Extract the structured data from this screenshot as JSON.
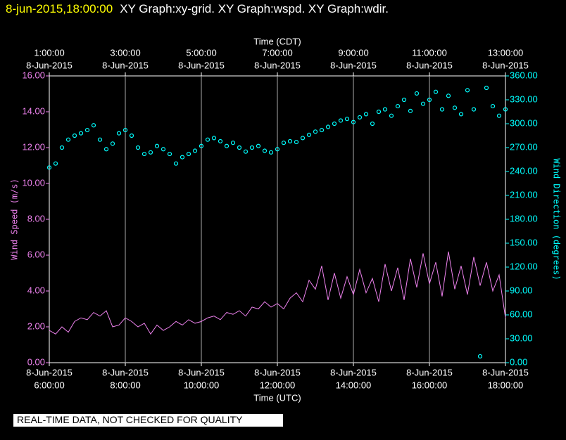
{
  "header": {
    "timestamp": "8-jun-2015,18:00:00",
    "graphs": "XY Graph:xy-grid.  XY Graph:wspd.  XY Graph:wdir."
  },
  "chart_data": {
    "type": "line-scatter",
    "xlabel": "Time (UTC)",
    "x2label": "Time (CDT)",
    "ylabel": "Wind Speed (m/s)",
    "y2label": "Wind Direction (degrees)",
    "note": "REAL-TIME DATA, NOT CHECKED FOR QUALITY",
    "xlim": [
      "2015-06-08 06:00",
      "2015-06-08 18:00"
    ],
    "xticks": [
      {
        "value": "2015-06-08 06:00",
        "label": [
          "8-Jun-2015",
          "6:00:00"
        ]
      },
      {
        "value": "2015-06-08 08:00",
        "label": [
          "8-Jun-2015",
          "8:00:00"
        ]
      },
      {
        "value": "2015-06-08 10:00",
        "label": [
          "8-Jun-2015",
          "10:00:00"
        ]
      },
      {
        "value": "2015-06-08 12:00",
        "label": [
          "8-Jun-2015",
          "12:00:00"
        ]
      },
      {
        "value": "2015-06-08 14:00",
        "label": [
          "8-Jun-2015",
          "14:00:00"
        ]
      },
      {
        "value": "2015-06-08 16:00",
        "label": [
          "8-Jun-2015",
          "16:00:00"
        ]
      },
      {
        "value": "2015-06-08 18:00",
        "label": [
          "8-Jun-2015",
          "18:00:00"
        ]
      }
    ],
    "x2ticks": [
      {
        "value": "2015-06-08 06:00",
        "label": [
          "1:00:00",
          "8-Jun-2015"
        ]
      },
      {
        "value": "2015-06-08 08:00",
        "label": [
          "3:00:00",
          "8-Jun-2015"
        ]
      },
      {
        "value": "2015-06-08 10:00",
        "label": [
          "5:00:00",
          "8-Jun-2015"
        ]
      },
      {
        "value": "2015-06-08 12:00",
        "label": [
          "7:00:00",
          "8-Jun-2015"
        ]
      },
      {
        "value": "2015-06-08 14:00",
        "label": [
          "9:00:00",
          "8-Jun-2015"
        ]
      },
      {
        "value": "2015-06-08 16:00",
        "label": [
          "11:00:00",
          "8-Jun-2015"
        ]
      },
      {
        "value": "2015-06-08 18:00",
        "label": [
          "13:00:00",
          "8-Jun-2015"
        ]
      }
    ],
    "ylim": [
      0,
      16
    ],
    "yticks": [
      {
        "value": 0,
        "label": "0.00"
      },
      {
        "value": 2,
        "label": "2.00"
      },
      {
        "value": 4,
        "label": "4.00"
      },
      {
        "value": 6,
        "label": "6.00"
      },
      {
        "value": 8,
        "label": "8.00"
      },
      {
        "value": 10,
        "label": "10.00"
      },
      {
        "value": 12,
        "label": "12.00"
      },
      {
        "value": 14,
        "label": "14.00"
      },
      {
        "value": 16,
        "label": "16.00"
      }
    ],
    "y2lim": [
      0,
      360
    ],
    "y2ticks": [
      {
        "value": 0,
        "label": "0.00"
      },
      {
        "value": 30,
        "label": "30.00"
      },
      {
        "value": 60,
        "label": "60.00"
      },
      {
        "value": 90,
        "label": "90.00"
      },
      {
        "value": 120,
        "label": "120.00"
      },
      {
        "value": 150,
        "label": "150.00"
      },
      {
        "value": 180,
        "label": "180.00"
      },
      {
        "value": 210,
        "label": "210.00"
      },
      {
        "value": 240,
        "label": "240.00"
      },
      {
        "value": 270,
        "label": "270.00"
      },
      {
        "value": 300,
        "label": "300.00"
      },
      {
        "value": 330,
        "label": "330.00"
      },
      {
        "value": 360,
        "label": "360.00"
      }
    ],
    "grid": true,
    "x": [
      "2015-06-08 06:00",
      "2015-06-08 06:10",
      "2015-06-08 06:20",
      "2015-06-08 06:30",
      "2015-06-08 06:40",
      "2015-06-08 06:50",
      "2015-06-08 07:00",
      "2015-06-08 07:10",
      "2015-06-08 07:20",
      "2015-06-08 07:30",
      "2015-06-08 07:40",
      "2015-06-08 07:50",
      "2015-06-08 08:00",
      "2015-06-08 08:10",
      "2015-06-08 08:20",
      "2015-06-08 08:30",
      "2015-06-08 08:40",
      "2015-06-08 08:50",
      "2015-06-08 09:00",
      "2015-06-08 09:10",
      "2015-06-08 09:20",
      "2015-06-08 09:30",
      "2015-06-08 09:40",
      "2015-06-08 09:50",
      "2015-06-08 10:00",
      "2015-06-08 10:10",
      "2015-06-08 10:20",
      "2015-06-08 10:30",
      "2015-06-08 10:40",
      "2015-06-08 10:50",
      "2015-06-08 11:00",
      "2015-06-08 11:10",
      "2015-06-08 11:20",
      "2015-06-08 11:30",
      "2015-06-08 11:40",
      "2015-06-08 11:50",
      "2015-06-08 12:00",
      "2015-06-08 12:10",
      "2015-06-08 12:20",
      "2015-06-08 12:30",
      "2015-06-08 12:40",
      "2015-06-08 12:50",
      "2015-06-08 13:00",
      "2015-06-08 13:10",
      "2015-06-08 13:20",
      "2015-06-08 13:30",
      "2015-06-08 13:40",
      "2015-06-08 13:50",
      "2015-06-08 14:00",
      "2015-06-08 14:10",
      "2015-06-08 14:20",
      "2015-06-08 14:30",
      "2015-06-08 14:40",
      "2015-06-08 14:50",
      "2015-06-08 15:00",
      "2015-06-08 15:10",
      "2015-06-08 15:20",
      "2015-06-08 15:30",
      "2015-06-08 15:40",
      "2015-06-08 15:50",
      "2015-06-08 16:00",
      "2015-06-08 16:10",
      "2015-06-08 16:20",
      "2015-06-08 16:30",
      "2015-06-08 16:40",
      "2015-06-08 16:50",
      "2015-06-08 17:00",
      "2015-06-08 17:10",
      "2015-06-08 17:20",
      "2015-06-08 17:30",
      "2015-06-08 17:40",
      "2015-06-08 17:50",
      "2015-06-08 18:00"
    ],
    "series": [
      {
        "name": "wspd",
        "kind": "line",
        "color": "#ee82ee",
        "values": [
          1.8,
          1.6,
          2.0,
          1.7,
          2.3,
          2.5,
          2.4,
          2.8,
          2.6,
          2.9,
          2.0,
          2.1,
          2.5,
          2.3,
          2.0,
          2.2,
          1.6,
          2.1,
          1.8,
          2.0,
          2.3,
          2.1,
          2.4,
          2.2,
          2.3,
          2.5,
          2.6,
          2.4,
          2.8,
          2.7,
          2.9,
          2.6,
          3.1,
          3.0,
          3.4,
          3.1,
          3.3,
          3.0,
          3.6,
          3.9,
          3.4,
          4.6,
          4.1,
          5.4,
          3.5,
          5.0,
          3.6,
          4.8,
          3.8,
          5.2,
          3.9,
          4.7,
          3.4,
          5.5,
          4.0,
          5.3,
          3.5,
          5.8,
          4.2,
          6.1,
          4.4,
          5.6,
          3.7,
          6.2,
          4.1,
          5.4,
          3.8,
          5.9,
          4.3,
          5.6,
          4.0,
          4.9,
          2.5
        ]
      },
      {
        "name": "wdir",
        "kind": "scatter",
        "axis": "y2",
        "color": "#00ffff",
        "values": [
          245,
          250,
          270,
          280,
          285,
          288,
          292,
          298,
          280,
          268,
          275,
          288,
          292,
          285,
          270,
          262,
          264,
          272,
          268,
          262,
          250,
          258,
          262,
          266,
          272,
          280,
          282,
          278,
          272,
          276,
          270,
          265,
          270,
          272,
          266,
          264,
          268,
          276,
          278,
          277,
          282,
          286,
          290,
          292,
          296,
          300,
          304,
          306,
          302,
          308,
          312,
          300,
          315,
          318,
          310,
          322,
          330,
          316,
          338,
          325,
          330,
          340,
          318,
          335,
          320,
          312,
          342,
          318,
          8,
          345,
          322,
          310,
          318
        ]
      }
    ]
  }
}
